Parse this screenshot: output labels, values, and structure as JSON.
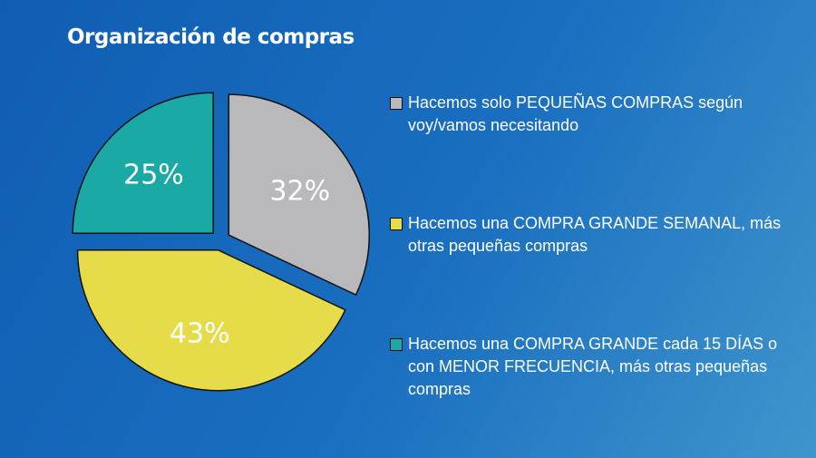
{
  "title": "Organización de compras",
  "chart_data": {
    "type": "pie",
    "slices": [
      {
        "label": "Hacemos solo PEQUEÑAS COMPRAS según voy/vamos necesitando",
        "value": 32,
        "display": "32%",
        "color": "#b9b9bb"
      },
      {
        "label": "Hacemos una COMPRA GRANDE SEMANAL, más otras pequeñas compras",
        "value": 43,
        "display": "43%",
        "color": "#e6dc4a"
      },
      {
        "label": "Hacemos una COMPRA GRANDE cada 15 DÍAS o con MENOR FRECUENCIA, más otras pequeñas compras",
        "value": 25,
        "display": "25%",
        "color": "#1aa9a5"
      }
    ],
    "legend_position": "right"
  }
}
